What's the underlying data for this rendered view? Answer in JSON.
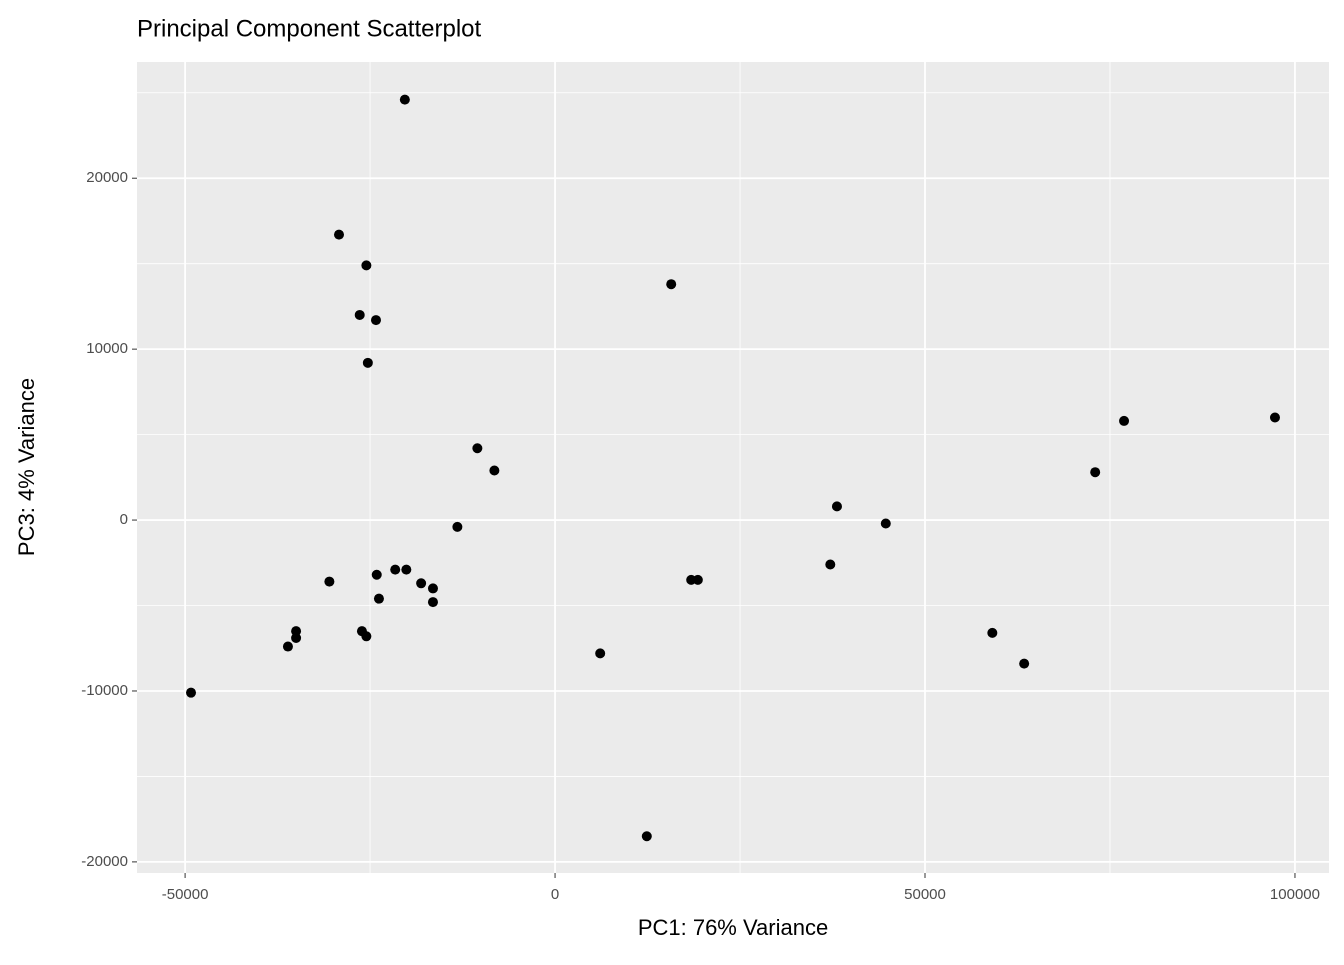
{
  "chart_data": {
    "type": "scatter",
    "title": "Principal Component Scatterplot",
    "xlabel": "PC1: 76% Variance",
    "ylabel": "PC3: 4% Variance",
    "color": "#000000",
    "grid": true,
    "minor_grid": true,
    "xlim": [
      -56500,
      104600
    ],
    "ylim": [
      -20650,
      26800
    ],
    "xticks": [
      -50000,
      0,
      50000,
      100000
    ],
    "yticks": [
      -20000,
      -10000,
      0,
      10000,
      20000
    ],
    "x": [
      -20300,
      -29200,
      -25500,
      -26400,
      -24200,
      -25300,
      -10500,
      -8200,
      -13200,
      -30500,
      -24100,
      -21600,
      -20100,
      -18100,
      -16500,
      -16500,
      -23800,
      -35000,
      -35000,
      -36100,
      -26100,
      -25500,
      -49200,
      6100,
      12400,
      15700,
      18400,
      19300,
      37200,
      38100,
      44700,
      59100,
      63400,
      73000,
      76900,
      97300
    ],
    "values": [
      24600,
      16700,
      14900,
      12000,
      11700,
      9200,
      4200,
      2900,
      -400,
      -3600,
      -3200,
      -2900,
      -2900,
      -3700,
      -4000,
      -4800,
      -4600,
      -6500,
      -6900,
      -7400,
      -6500,
      -6800,
      -10100,
      -7800,
      -18500,
      13800,
      -3500,
      -3500,
      -2600,
      800,
      -200,
      -6600,
      -8400,
      2800,
      5800,
      6000
    ]
  }
}
